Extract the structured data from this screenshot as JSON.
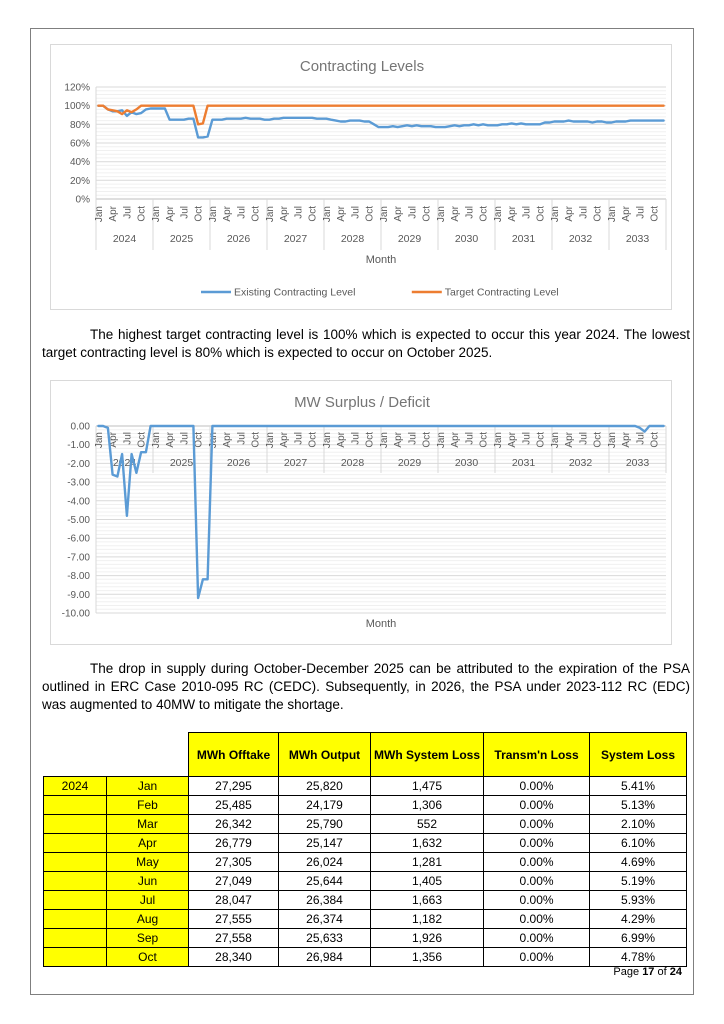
{
  "page": {
    "paragraph1": "The highest target contracting level is 100% which is expected to occur this year 2024. The lowest target contracting level is 80% which is expected to occur on October 2025.",
    "paragraph2": "The drop in supply during October-December 2025 can be attributed to the expiration of the PSA outlined in ERC Case 2010-095 RC (CEDC). Subsequently, in 2026, the PSA under 2023-112 RC (EDC) was augmented to 40MW to mitigate the shortage.",
    "footer": {
      "page_word": "Page",
      "page_number": "17",
      "of_word": "of",
      "total_pages": "24"
    }
  },
  "chart_data": [
    {
      "type": "line",
      "title": "Contracting Levels",
      "xlabel": "Month",
      "ylabel": "",
      "ylim": [
        0,
        120
      ],
      "ytick_labels": [
        "120%",
        "100%",
        "80%",
        "60%",
        "40%",
        "20%",
        "0%"
      ],
      "years": [
        "2024",
        "2025",
        "2026",
        "2027",
        "2028",
        "2029",
        "2030",
        "2031",
        "2032",
        "2033"
      ],
      "tick_months": [
        "Jan",
        "Apr",
        "Jul",
        "Oct"
      ],
      "months_per_year": 12,
      "grid": true,
      "legend_position": "bottom",
      "series": [
        {
          "name": "Existing Contracting Level",
          "color": "#5B9BD5",
          "unit": "%",
          "values": [
            100,
            100,
            96,
            94,
            94,
            95,
            89,
            93,
            91,
            92,
            96,
            97,
            97,
            97,
            97,
            85,
            85,
            85,
            85,
            86,
            86,
            66,
            66,
            67,
            85,
            85,
            85,
            86,
            86,
            86,
            86,
            87,
            86,
            86,
            86,
            85,
            85,
            86,
            86,
            87,
            87,
            87,
            87,
            87,
            87,
            87,
            86,
            86,
            86,
            85,
            84,
            83,
            83,
            84,
            84,
            84,
            83,
            83,
            80,
            77,
            77,
            77,
            78,
            77,
            78,
            79,
            78,
            79,
            78,
            78,
            78,
            77,
            77,
            77,
            78,
            79,
            78,
            79,
            79,
            80,
            79,
            80,
            79,
            79,
            79,
            80,
            80,
            81,
            80,
            81,
            80,
            80,
            80,
            80,
            82,
            82,
            83,
            83,
            83,
            84,
            83,
            83,
            83,
            83,
            82,
            83,
            83,
            82,
            82,
            83,
            83,
            83,
            84,
            84,
            84,
            84,
            84,
            84,
            84,
            84
          ]
        },
        {
          "name": "Target Contracting Level",
          "color": "#ED7D31",
          "unit": "%",
          "values": [
            100,
            100,
            96,
            95,
            94,
            91,
            95,
            93,
            96,
            100,
            100,
            100,
            100,
            100,
            100,
            100,
            100,
            100,
            100,
            100,
            100,
            80,
            81,
            100,
            100,
            100,
            100,
            100,
            100,
            100,
            100,
            100,
            100,
            100,
            100,
            100,
            100,
            100,
            100,
            100,
            100,
            100,
            100,
            100,
            100,
            100,
            100,
            100,
            100,
            100,
            100,
            100,
            100,
            100,
            100,
            100,
            100,
            100,
            100,
            100,
            100,
            100,
            100,
            100,
            100,
            100,
            100,
            100,
            100,
            100,
            100,
            100,
            100,
            100,
            100,
            100,
            100,
            100,
            100,
            100,
            100,
            100,
            100,
            100,
            100,
            100,
            100,
            100,
            100,
            100,
            100,
            100,
            100,
            100,
            100,
            100,
            100,
            100,
            100,
            100,
            100,
            100,
            100,
            100,
            100,
            100,
            100,
            100,
            100,
            100,
            100,
            100,
            100,
            100,
            100,
            100,
            100,
            100,
            100,
            100
          ]
        }
      ]
    },
    {
      "type": "line",
      "title": "MW Surplus / Deficit",
      "xlabel": "Month",
      "ylabel": "",
      "ylim": [
        -10,
        0
      ],
      "ytick_labels": [
        "0.00",
        "-1.00",
        "-2.00",
        "-3.00",
        "-4.00",
        "-5.00",
        "-6.00",
        "-7.00",
        "-8.00",
        "-9.00",
        "-10.00"
      ],
      "years": [
        "2024",
        "2025",
        "2026",
        "2027",
        "2028",
        "2029",
        "2030",
        "2031",
        "2032",
        "2033"
      ],
      "tick_months": [
        "Jan",
        "Apr",
        "Jul",
        "Oct"
      ],
      "months_per_year": 12,
      "grid": true,
      "legend_position": "none",
      "series": [
        {
          "name": "MW Surplus / Deficit",
          "color": "#5B9BD5",
          "unit": "MW",
          "values": [
            0,
            0,
            -0.1,
            -2.6,
            -2.7,
            -1.5,
            -4.8,
            -1.5,
            -2.5,
            -1.4,
            -1.4,
            0,
            0,
            0,
            0,
            0,
            0,
            0,
            0,
            0,
            0,
            -9.2,
            -8.2,
            -8.2,
            0,
            0,
            0,
            0,
            0,
            0,
            0,
            0,
            0,
            0,
            0,
            0,
            0,
            0,
            0,
            0,
            0,
            0,
            0,
            0,
            0,
            0,
            0,
            0,
            0,
            0,
            0,
            0,
            0,
            0,
            0,
            0,
            0,
            0,
            0,
            0,
            0,
            0,
            0,
            0,
            0,
            0,
            0,
            0,
            0,
            0,
            0,
            0,
            0,
            0,
            0,
            0,
            0,
            0,
            0,
            0,
            0,
            0,
            0,
            0,
            0,
            0,
            0,
            0,
            0,
            0,
            0,
            0,
            0,
            0,
            0,
            0,
            0,
            0,
            0,
            0,
            0,
            0,
            0,
            0,
            0,
            0,
            0,
            0,
            0,
            0,
            0,
            0,
            0,
            0,
            -0.1,
            -0.3,
            0,
            0,
            0,
            0
          ]
        }
      ]
    }
  ],
  "table": {
    "headers": [
      "MWh Offtake",
      "MWh Output",
      "MWh System Loss",
      "Transm'n Loss",
      "System Loss"
    ],
    "year_label": "2024",
    "header_bg": "#FFFF00",
    "rows": [
      {
        "month": "Jan",
        "mwh_offtake": "27,295",
        "mwh_output": "25,820",
        "mwh_system_loss": "1,475",
        "transmn_loss": "0.00%",
        "system_loss": "5.41%"
      },
      {
        "month": "Feb",
        "mwh_offtake": "25,485",
        "mwh_output": "24,179",
        "mwh_system_loss": "1,306",
        "transmn_loss": "0.00%",
        "system_loss": "5.13%"
      },
      {
        "month": "Mar",
        "mwh_offtake": "26,342",
        "mwh_output": "25,790",
        "mwh_system_loss": "552",
        "transmn_loss": "0.00%",
        "system_loss": "2.10%"
      },
      {
        "month": "Apr",
        "mwh_offtake": "26,779",
        "mwh_output": "25,147",
        "mwh_system_loss": "1,632",
        "transmn_loss": "0.00%",
        "system_loss": "6.10%"
      },
      {
        "month": "May",
        "mwh_offtake": "27,305",
        "mwh_output": "26,024",
        "mwh_system_loss": "1,281",
        "transmn_loss": "0.00%",
        "system_loss": "4.69%"
      },
      {
        "month": "Jun",
        "mwh_offtake": "27,049",
        "mwh_output": "25,644",
        "mwh_system_loss": "1,405",
        "transmn_loss": "0.00%",
        "system_loss": "5.19%"
      },
      {
        "month": "Jul",
        "mwh_offtake": "28,047",
        "mwh_output": "26,384",
        "mwh_system_loss": "1,663",
        "transmn_loss": "0.00%",
        "system_loss": "5.93%"
      },
      {
        "month": "Aug",
        "mwh_offtake": "27,555",
        "mwh_output": "26,374",
        "mwh_system_loss": "1,182",
        "transmn_loss": "0.00%",
        "system_loss": "4.29%"
      },
      {
        "month": "Sep",
        "mwh_offtake": "27,558",
        "mwh_output": "25,633",
        "mwh_system_loss": "1,926",
        "transmn_loss": "0.00%",
        "system_loss": "6.99%"
      },
      {
        "month": "Oct",
        "mwh_offtake": "28,340",
        "mwh_output": "26,984",
        "mwh_system_loss": "1,356",
        "transmn_loss": "0.00%",
        "system_loss": "4.78%"
      }
    ]
  }
}
